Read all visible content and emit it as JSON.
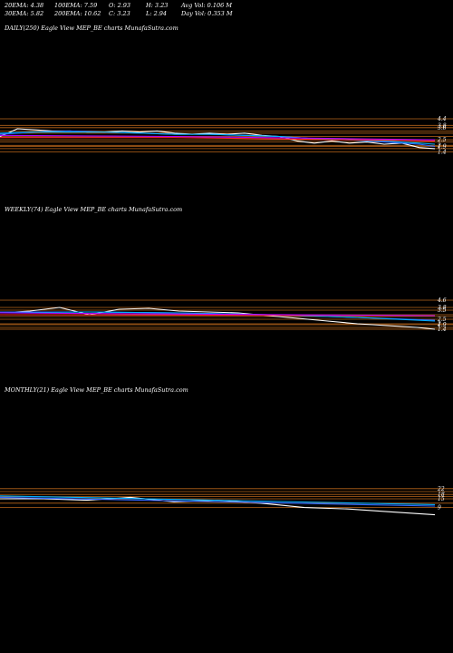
{
  "header": {
    "row1": [
      {
        "key": "ema20",
        "text": "20EMA: 4.38"
      },
      {
        "key": "ema100",
        "text": "100EMA: 7.59"
      },
      {
        "key": "open",
        "text": "O: 2.93"
      },
      {
        "key": "high",
        "text": "H: 3.23"
      },
      {
        "key": "avgvol",
        "text": "Avg Vol: 0.106  M"
      }
    ],
    "row2": [
      {
        "key": "ema30",
        "text": "30EMA: 5.82"
      },
      {
        "key": "ema200",
        "text": "200EMA: 10.62"
      },
      {
        "key": "close",
        "text": "C: 3.23"
      },
      {
        "key": "low",
        "text": "L: 2.94"
      },
      {
        "key": "dayvol",
        "text": "Day Vol: 0.353  M"
      }
    ]
  },
  "chart_data": [
    {
      "type": "line",
      "title": "DAILY(250) Eagle   View  MEP_BE charts MunafaSutra.com",
      "ylim": [
        1.2,
        4.4
      ],
      "price_levels": [
        "4.4",
        "3.8",
        "3.6",
        "2.5",
        "2",
        "1.9",
        "1.4"
      ],
      "level_values": [
        4.4,
        3.8,
        3.6,
        2.5,
        2.0,
        1.9,
        1.4,
        3.3,
        3.1,
        2.8,
        2.3,
        1.7
      ],
      "series": [
        {
          "color": "#ffffff",
          "x": [
            0,
            10,
            20,
            30,
            40,
            50,
            60,
            70,
            80,
            90,
            100,
            110,
            120,
            130,
            140,
            150,
            160,
            170,
            180,
            190,
            200,
            210,
            220,
            230,
            240,
            249
          ],
          "values": [
            2.8,
            3.5,
            3.4,
            3.3,
            3.3,
            3.2,
            3.2,
            3.3,
            3.2,
            3.3,
            3.1,
            3.0,
            3.1,
            3.0,
            3.1,
            2.9,
            2.8,
            2.4,
            2.2,
            2.4,
            2.2,
            2.3,
            2.1,
            2.2,
            1.8,
            1.7
          ]
        },
        {
          "color": "#3366ff",
          "x": [
            0,
            20,
            40,
            60,
            80,
            100,
            120,
            140,
            160,
            180,
            200,
            220,
            240,
            249
          ],
          "values": [
            3.0,
            3.2,
            3.3,
            3.2,
            3.1,
            3.0,
            3.0,
            2.9,
            2.8,
            2.6,
            2.5,
            2.3,
            2.1,
            1.9
          ]
        },
        {
          "color": "#00b0ff",
          "x": [
            0,
            20,
            40,
            60,
            80,
            100,
            120,
            140,
            160,
            180,
            200,
            220,
            240,
            249
          ],
          "values": [
            3.1,
            3.2,
            3.2,
            3.2,
            3.1,
            3.0,
            3.0,
            2.9,
            2.8,
            2.6,
            2.5,
            2.4,
            2.2,
            2.1
          ]
        },
        {
          "color": "#ff2a2a",
          "x": [
            0,
            50,
            100,
            150,
            200,
            249
          ],
          "values": [
            2.7,
            2.7,
            2.7,
            2.6,
            2.5,
            2.4
          ]
        },
        {
          "color": "#b400ff",
          "x": [
            0,
            50,
            100,
            150,
            200,
            249
          ],
          "values": [
            2.9,
            2.85,
            2.8,
            2.7,
            2.6,
            2.5
          ]
        }
      ]
    },
    {
      "type": "line",
      "title": "WEEKLY(74) Eagle   View  MEP_BE charts MunafaSutra.com",
      "ylim": [
        1.0,
        4.6
      ],
      "price_levels": [
        "4.6",
        "3.8",
        "3.5",
        "2.5",
        "2",
        "1.9",
        "1.4"
      ],
      "level_values": [
        4.6,
        3.8,
        3.5,
        2.5,
        2.0,
        1.9,
        1.4,
        3.0,
        2.8,
        1.6
      ],
      "series": [
        {
          "color": "#ffffff",
          "x": [
            0,
            5,
            10,
            15,
            20,
            25,
            30,
            35,
            40,
            45,
            50,
            55,
            60,
            65,
            70,
            73
          ],
          "values": [
            3.2,
            3.4,
            3.8,
            3.0,
            3.6,
            3.7,
            3.4,
            3.3,
            3.2,
            2.9,
            2.6,
            2.3,
            2.0,
            1.8,
            1.6,
            1.4
          ]
        },
        {
          "color": "#3366ff",
          "x": [
            0,
            15,
            30,
            45,
            60,
            73
          ],
          "values": [
            3.3,
            3.3,
            3.2,
            3.0,
            2.7,
            2.4
          ]
        },
        {
          "color": "#00b0ff",
          "x": [
            0,
            15,
            30,
            45,
            60,
            73
          ],
          "values": [
            3.2,
            3.3,
            3.2,
            3.0,
            2.7,
            2.3
          ]
        },
        {
          "color": "#ff2a2a",
          "x": [
            0,
            73
          ],
          "values": [
            3.0,
            2.9
          ]
        },
        {
          "color": "#b400ff",
          "x": [
            0,
            73
          ],
          "values": [
            3.2,
            2.9
          ]
        }
      ]
    },
    {
      "type": "line",
      "title": "MONTHLY(21) Eagle   View  MEP_BE charts MunafaSutra.com",
      "ylim": [
        0,
        30
      ],
      "price_levels": [
        "22",
        "18",
        "15",
        "9"
      ],
      "level_values": [
        22,
        18,
        15,
        9,
        20,
        16.5,
        12
      ],
      "series": [
        {
          "color": "#ffffff",
          "x": [
            0,
            2,
            4,
            6,
            8,
            10,
            12,
            14,
            16,
            18,
            20
          ],
          "values": [
            15,
            15,
            14,
            16,
            13,
            14,
            12,
            9,
            8,
            6,
            4
          ]
        },
        {
          "color": "#3366ff",
          "x": [
            0,
            20
          ],
          "values": [
            16,
            10
          ]
        },
        {
          "color": "#00b0ff",
          "x": [
            0,
            20
          ],
          "values": [
            17,
            11
          ]
        }
      ]
    }
  ]
}
